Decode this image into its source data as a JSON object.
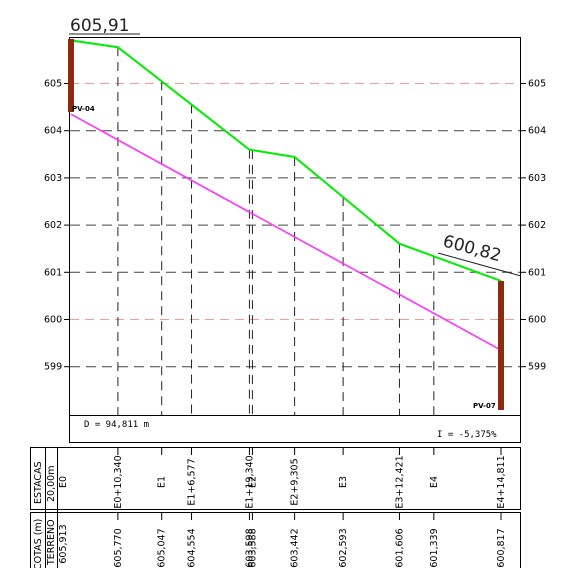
{
  "title_left": "605,91",
  "title_right": "600,82",
  "pv_left": "PV-04",
  "pv_right": "PV-07",
  "distance": "D = 94,811 m",
  "slope": "I = -5,375%",
  "header": {
    "estacas": "ESTACAS",
    "spacing": "20,00m",
    "cotas": "COTAS (m)",
    "terreno": "TERRENO"
  },
  "colors": {
    "terrain": "#00ee00",
    "grade": "#ff33ff",
    "pv": "#8b2c12",
    "grid_red": "#ff9999"
  },
  "chart_data": {
    "type": "line",
    "title": "",
    "xlabel": "",
    "ylabel": "",
    "ylim": [
      598.3,
      606.0
    ],
    "yticks": [
      605,
      604,
      603,
      602,
      601,
      600,
      599
    ],
    "grid": true,
    "stations": [
      {
        "name": "E0",
        "dist": 0,
        "elev": 605.913,
        "elev_label": "605,913"
      },
      {
        "name": "E0+10,340",
        "dist": 10.34,
        "elev": 605.77,
        "elev_label": "605,770"
      },
      {
        "name": "E1",
        "dist": 20.0,
        "elev": 605.047,
        "elev_label": "605,047"
      },
      {
        "name": "E1+6,577",
        "dist": 26.577,
        "elev": 604.554,
        "elev_label": "604,554"
      },
      {
        "name": "E1+19,340",
        "dist": 39.34,
        "elev": 603.598,
        "elev_label": "603,598"
      },
      {
        "name": "E2",
        "dist": 40.0,
        "elev": 603.588,
        "elev_label": "603,588"
      },
      {
        "name": "E2+9,305",
        "dist": 49.305,
        "elev": 603.442,
        "elev_label": "603,442"
      },
      {
        "name": "E3",
        "dist": 60.0,
        "elev": 602.593,
        "elev_label": "602,593"
      },
      {
        "name": "E3+12,421",
        "dist": 72.421,
        "elev": 601.606,
        "elev_label": "601,606"
      },
      {
        "name": "E4",
        "dist": 80.0,
        "elev": 601.339,
        "elev_label": "601,339"
      },
      {
        "name": "E4+14,811",
        "dist": 94.811,
        "elev": 600.817,
        "elev_label": "600,817"
      }
    ],
    "grade_line": {
      "start": 604.35,
      "end": 599.35
    }
  }
}
